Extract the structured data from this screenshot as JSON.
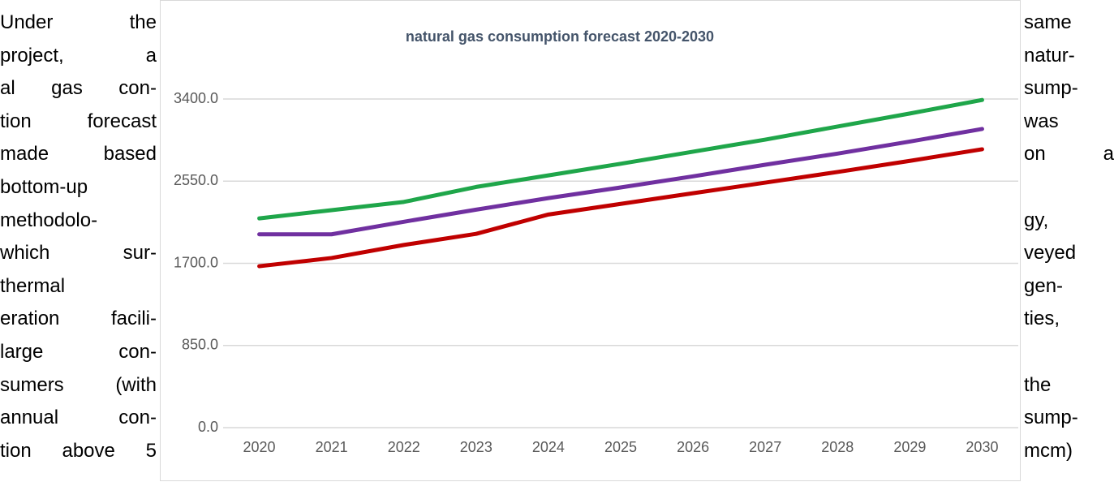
{
  "left_text": [
    "Under the",
    "project, a",
    "al gas con-",
    "tion forecast",
    "made based",
    "bottom-up",
    "methodolo-",
    "which sur-",
    "thermal",
    "eration facili-",
    "large con-",
    "sumers (with",
    "annual con-",
    "tion above 5"
  ],
  "right_text": [
    "same",
    "natur-",
    "sump-",
    "was",
    "on a",
    "",
    "gy,",
    "veyed",
    "gen-",
    "ties,",
    "",
    "the",
    "sump-",
    "mcm)"
  ],
  "chart_data": {
    "type": "line",
    "title": "natural gas consumption forecast 2020-2030",
    "categories": [
      "2020",
      "2021",
      "2022",
      "2023",
      "2024",
      "2025",
      "2026",
      "2027",
      "2028",
      "2029",
      "2030"
    ],
    "series": [
      {
        "color": "#1fa64a",
        "values": [
          2165,
          2250,
          2335,
          2490,
          2610,
          2730,
          2855,
          2980,
          3115,
          3250,
          3390
        ]
      },
      {
        "color": "#7030a0",
        "values": [
          2000,
          2000,
          2130,
          2255,
          2375,
          2485,
          2600,
          2720,
          2835,
          2960,
          3090
        ]
      },
      {
        "color": "#c00000",
        "values": [
          1670,
          1755,
          1890,
          2005,
          2205,
          2315,
          2425,
          2535,
          2645,
          2760,
          2880
        ]
      }
    ],
    "ylim": [
      0,
      3400
    ],
    "yticks": [
      {
        "value": 0,
        "label": "0.0"
      },
      {
        "value": 850,
        "label": "850.0"
      },
      {
        "value": 1700,
        "label": "1700.0"
      },
      {
        "value": 2550,
        "label": "2550.0"
      },
      {
        "value": 3400,
        "label": "3400.0"
      }
    ],
    "grid": true
  }
}
